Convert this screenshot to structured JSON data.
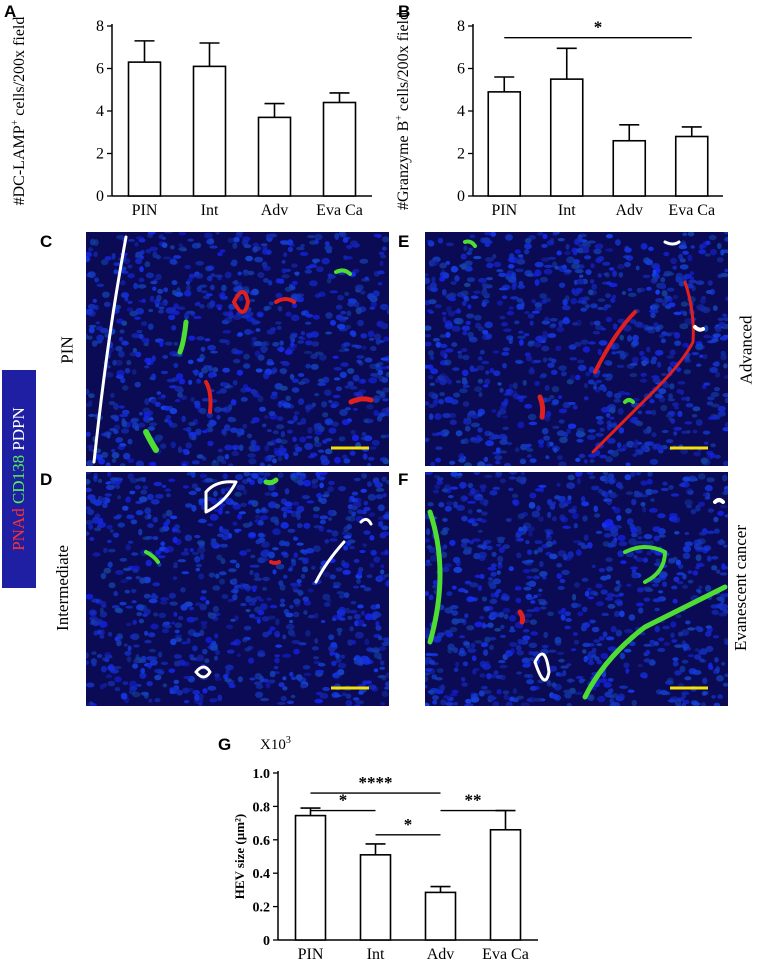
{
  "panels": {
    "A": "A",
    "B": "B",
    "C": "C",
    "D": "D",
    "E": "E",
    "F": "F",
    "G": "G"
  },
  "stain_legend": {
    "red": "PNAd",
    "green": "CD138",
    "white": "PDPN"
  },
  "colors": {
    "red_stain": "#e0201e",
    "green_stain": "#4ddd33",
    "white_stain": "#ffffff",
    "nuclei": "#1a34e0",
    "background": "#05052a",
    "scale_bar": "#f5e000",
    "legend_bg": "#1f1fa3"
  },
  "micrographs": {
    "C": {
      "label": "PIN"
    },
    "D": {
      "label": "Intermediate"
    },
    "E": {
      "label": "Advanced"
    },
    "F": {
      "label": "Evanescent cancer"
    }
  },
  "chart_data": [
    {
      "id": "A",
      "type": "bar",
      "categories": [
        "PIN",
        "Int",
        "Adv",
        "Eva Ca"
      ],
      "values": [
        6.3,
        6.1,
        3.7,
        4.4
      ],
      "errors": [
        1.0,
        1.1,
        0.65,
        0.45
      ],
      "ylabel_pre": "#DC-LAMP",
      "ylabel_sup": "+",
      "ylabel_post": " cells/200x field",
      "ylim": [
        0,
        8
      ],
      "yticks": [
        0,
        2,
        4,
        6,
        8
      ],
      "significance": []
    },
    {
      "id": "B",
      "type": "bar",
      "categories": [
        "PIN",
        "Int",
        "Adv",
        "Eva Ca"
      ],
      "values": [
        4.9,
        5.5,
        2.6,
        2.8
      ],
      "errors": [
        0.7,
        1.45,
        0.75,
        0.45
      ],
      "ylabel_pre": "#Granzyme B",
      "ylabel_sup": "+",
      "ylabel_post": " cells/200x field",
      "ylim": [
        0,
        8
      ],
      "yticks": [
        0,
        2,
        4,
        6,
        8
      ],
      "significance": [
        {
          "from": 0,
          "to": 3,
          "level": 7.45,
          "label": "*"
        }
      ]
    },
    {
      "id": "G",
      "type": "bar",
      "categories": [
        "PIN",
        "Int",
        "Adv",
        "Eva Ca"
      ],
      "values": [
        0.745,
        0.51,
        0.285,
        0.66
      ],
      "errors": [
        0.045,
        0.065,
        0.035,
        0.115
      ],
      "ylabel": "HEV size  (µm²)",
      "multiplier_pre": "X10",
      "multiplier_sup": "3",
      "ylim": [
        0,
        1.0
      ],
      "yticks": [
        "0",
        "0.2",
        "0.4",
        "0.6",
        "0.8",
        "1.0"
      ],
      "significance": [
        {
          "from": 0,
          "to": 2,
          "level": 0.88,
          "label": "****"
        },
        {
          "from": 0,
          "to": 1,
          "level": 0.775,
          "label": "*"
        },
        {
          "from": 1,
          "to": 2,
          "level": 0.63,
          "label": "*"
        },
        {
          "from": 2,
          "to": 3,
          "level": 0.775,
          "label": "**"
        }
      ]
    }
  ]
}
